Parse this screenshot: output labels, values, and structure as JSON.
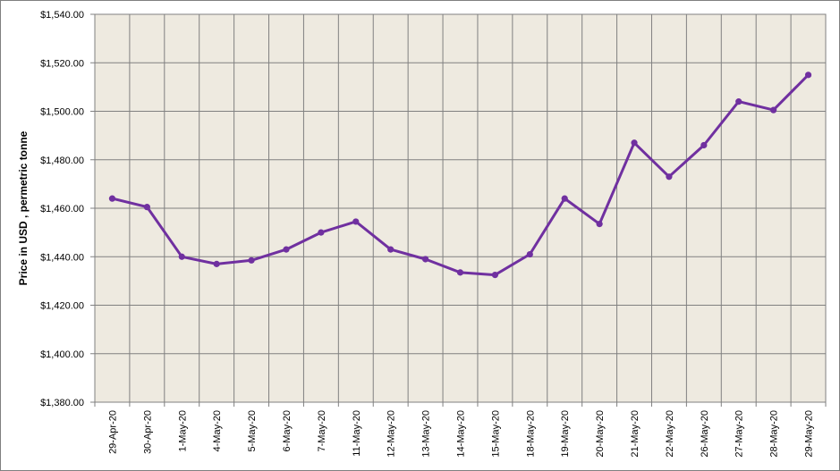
{
  "chart_data": {
    "type": "line",
    "title": "",
    "xlabel": "",
    "ylabel": "Price in USD , permetric tonne",
    "categories": [
      "29-Apr-20",
      "30-Apr-20",
      "1-May-20",
      "4-May-20",
      "5-May-20",
      "6-May-20",
      "7-May-20",
      "11-May-20",
      "12-May-20",
      "13-May-20",
      "14-May-20",
      "15-May-20",
      "18-May-20",
      "19-May-20",
      "20-May-20",
      "21-May-20",
      "22-May-20",
      "26-May-20",
      "27-May-20",
      "28-May-20",
      "29-May-20"
    ],
    "series": [
      {
        "values": [
          1464.0,
          1460.5,
          1440.0,
          1437.0,
          1438.5,
          1443.0,
          1450.0,
          1454.5,
          1443.0,
          1439.0,
          1433.5,
          1432.5,
          1441.0,
          1464.0,
          1453.5,
          1487.0,
          1473.0,
          1486.0,
          1504.0,
          1500.5,
          1515.0
        ]
      }
    ],
    "ylim": [
      1380,
      1540
    ],
    "yticks": [
      "$1,380.00",
      "$1,400.00",
      "$1,420.00",
      "$1,440.00",
      "$1,460.00",
      "$1,480.00",
      "$1,500.00",
      "$1,520.00",
      "$1,540.00"
    ],
    "grid": true,
    "legend": "none",
    "colors": {
      "line": "#7030A0",
      "plot_bg": "#EEEAE0",
      "grid": "#808080"
    }
  }
}
